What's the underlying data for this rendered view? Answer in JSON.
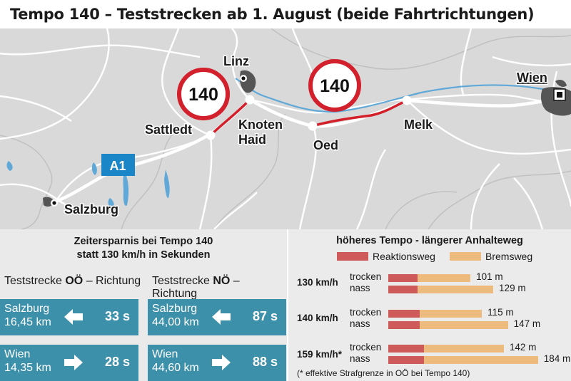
{
  "title": "Tempo 140 – Teststrecken ab 1. August (beide Fahrtrichtungen)",
  "map": {
    "places": {
      "linz": "Linz",
      "wien": "Wien",
      "sattledt": "Sattledt",
      "knoten1": "Knoten",
      "knoten2": "Haid",
      "oed": "Oed",
      "melk": "Melk",
      "salzburg": "Salzburg"
    },
    "speed_sign_1": "140",
    "speed_sign_2": "140",
    "motorway_badge": "A1",
    "colors": {
      "route": "#d21f2a",
      "sign_ring": "#d2202c",
      "badge": "#1a86c8",
      "land": "#d9d9d9"
    }
  },
  "savings": {
    "heading_1": "Zeitersparnis bei Tempo 140",
    "heading_2": "statt 130 km/h in Sekunden",
    "oo": {
      "prefix": "Teststrecke ",
      "region": "OÖ",
      "suffix": " – Richtung"
    },
    "no": {
      "prefix": "Teststrecke ",
      "region": "NÖ",
      "suffix": " – Richtung"
    },
    "boxes": [
      {
        "destination": "Salzburg",
        "distance": "16,45 km",
        "seconds": "33 s",
        "arrow": "left-arrow-icon"
      },
      {
        "destination": "Salzburg",
        "distance": "44,00 km",
        "seconds": "87 s",
        "arrow": "left-arrow-icon"
      },
      {
        "destination": "Wien",
        "distance": "14,35 km",
        "seconds": "28 s",
        "arrow": "right-arrow-icon"
      },
      {
        "destination": "Wien",
        "distance": "44,60 km",
        "seconds": "88 s",
        "arrow": "right-arrow-icon"
      }
    ],
    "colors": {
      "box": "#3d90aa"
    }
  },
  "chart_data": {
    "type": "bar",
    "stacked": true,
    "orientation": "horizontal",
    "title": "höheres Tempo - längerer Anhalteweg",
    "unit": "m",
    "legend": [
      {
        "label": "Reaktionsweg",
        "color": "#cf5a5a"
      },
      {
        "label": "Bremsweg",
        "color": "#ecbb7d"
      }
    ],
    "groups": [
      {
        "speed": "130 km/h",
        "rows": [
          {
            "condition": "trocken",
            "reaction": 36,
            "braking": 65,
            "label": "101 m"
          },
          {
            "condition": "nass",
            "reaction": 36,
            "braking": 93,
            "label": "129 m"
          }
        ]
      },
      {
        "speed": "140 km/h",
        "rows": [
          {
            "condition": "trocken",
            "reaction": 39,
            "braking": 76,
            "label": "115 m"
          },
          {
            "condition": "nass",
            "reaction": 39,
            "braking": 108,
            "label": "147 m"
          }
        ]
      },
      {
        "speed": "159 km/h*",
        "rows": [
          {
            "condition": "trocken",
            "reaction": 44,
            "braking": 98,
            "label": "142 m"
          },
          {
            "condition": "nass",
            "reaction": 44,
            "braking": 140,
            "label": "184 m"
          }
        ]
      }
    ],
    "footnote": "(* effektive Strafgrenze in OÖ bei Tempo 140)"
  }
}
